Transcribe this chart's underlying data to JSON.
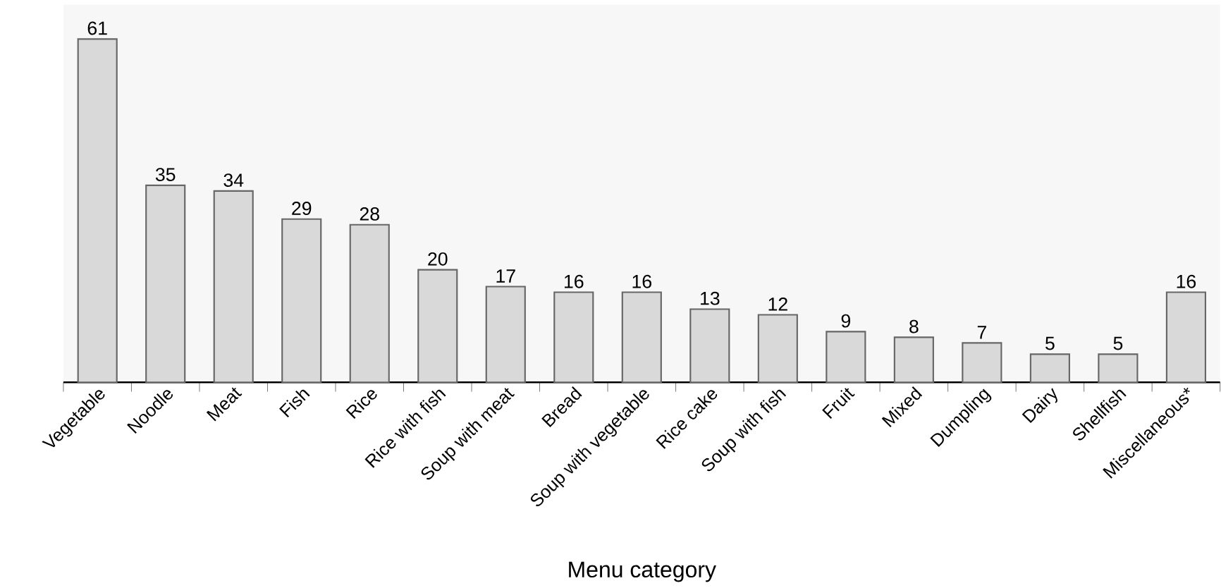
{
  "chart_data": {
    "type": "bar",
    "xlabel": "Menu category",
    "categories": [
      "Vegetable",
      "Noodle",
      "Meat",
      "Fish",
      "Rice",
      "Rice with fish",
      "Soup with meat",
      "Bread",
      "Soup with vegetable",
      "Rice cake",
      "Soup with fish",
      "Fruit",
      "Mixed",
      "Dumpling",
      "Dairy",
      "Shellfish",
      "Miscellaneous*"
    ],
    "values": [
      61,
      35,
      34,
      29,
      28,
      20,
      17,
      16,
      16,
      13,
      12,
      9,
      8,
      7,
      5,
      5,
      16
    ],
    "color": "#d9d9d9",
    "data_labels": true,
    "tick_labels": "x"
  }
}
